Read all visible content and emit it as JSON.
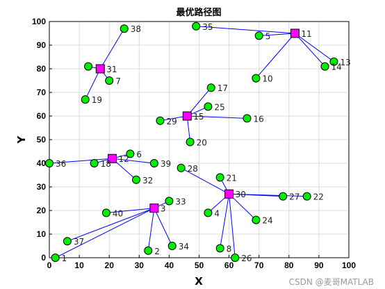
{
  "chart_data": {
    "type": "scatter",
    "title": "最优路径图",
    "xlabel": "X",
    "ylabel": "Y",
    "xlim": [
      0,
      100
    ],
    "ylim": [
      0,
      100
    ],
    "x_ticks": [
      0,
      10,
      20,
      30,
      40,
      50,
      60,
      70,
      80,
      90,
      100
    ],
    "y_ticks": [
      0,
      10,
      20,
      30,
      40,
      50,
      60,
      70,
      80,
      90,
      100
    ],
    "grid": true,
    "colors": {
      "customer_fill": "#00ee00",
      "center_fill": "#ff00ff",
      "route_line": "#0000ff",
      "marker_edge": "#000000"
    },
    "points": [
      {
        "id": 1,
        "x": 2,
        "y": 0,
        "label": "1"
      },
      {
        "id": 2,
        "x": 33,
        "y": 3,
        "label": "2"
      },
      {
        "id": 3,
        "x": 35,
        "y": 21,
        "label": "3"
      },
      {
        "id": 4,
        "x": 53,
        "y": 19,
        "label": "4"
      },
      {
        "id": 5,
        "x": 70,
        "y": 94,
        "label": "5"
      },
      {
        "id": 6,
        "x": 27,
        "y": 44,
        "label": "6"
      },
      {
        "id": 7,
        "x": 20,
        "y": 75,
        "label": "7"
      },
      {
        "id": 8,
        "x": 57,
        "y": 4,
        "label": "8"
      },
      {
        "id": 10,
        "x": 69,
        "y": 76,
        "label": "10"
      },
      {
        "id": 11,
        "x": 82,
        "y": 95,
        "label": "11"
      },
      {
        "id": 12,
        "x": 21,
        "y": 42,
        "label": "12"
      },
      {
        "id": 13,
        "x": 95,
        "y": 83,
        "label": "13"
      },
      {
        "id": 14,
        "x": 92,
        "y": 81,
        "label": "14"
      },
      {
        "id": 15,
        "x": 46,
        "y": 60,
        "label": "15"
      },
      {
        "id": 16,
        "x": 66,
        "y": 59,
        "label": "16"
      },
      {
        "id": 17,
        "x": 54,
        "y": 72,
        "label": "17"
      },
      {
        "id": 18,
        "x": 15,
        "y": 40,
        "label": "18"
      },
      {
        "id": 19,
        "x": 12,
        "y": 67,
        "label": "19"
      },
      {
        "id": 20,
        "x": 47,
        "y": 49,
        "label": "20"
      },
      {
        "id": 21,
        "x": 57,
        "y": 34,
        "label": "21"
      },
      {
        "id": 22,
        "x": 86,
        "y": 26,
        "label": "22"
      },
      {
        "id": 24,
        "x": 69,
        "y": 16,
        "label": "24"
      },
      {
        "id": 25,
        "x": 53,
        "y": 64,
        "label": "25"
      },
      {
        "id": 26,
        "x": 62,
        "y": 0,
        "label": "26"
      },
      {
        "id": 27,
        "x": 78,
        "y": 26,
        "label": "27"
      },
      {
        "id": 28,
        "x": 44,
        "y": 38,
        "label": "28"
      },
      {
        "id": 29,
        "x": 37,
        "y": 58,
        "label": "29"
      },
      {
        "id": 30,
        "x": 60,
        "y": 27,
        "label": "30"
      },
      {
        "id": 31,
        "x": 17,
        "y": 80,
        "label": "31"
      },
      {
        "id": 32,
        "x": 29,
        "y": 33,
        "label": "32"
      },
      {
        "id": 33,
        "x": 40,
        "y": 24,
        "label": "33"
      },
      {
        "id": 34,
        "x": 41,
        "y": 5,
        "label": "34"
      },
      {
        "id": 35,
        "x": 49,
        "y": 98,
        "label": "35"
      },
      {
        "id": 36,
        "x": 0,
        "y": 40,
        "label": "36"
      },
      {
        "id": 37,
        "x": 6,
        "y": 7,
        "label": "37"
      },
      {
        "id": 38,
        "x": 25,
        "y": 97,
        "label": "38"
      },
      {
        "id": 39,
        "x": 35,
        "y": 40,
        "label": "39"
      },
      {
        "id": 40,
        "x": 19,
        "y": 19,
        "label": "40"
      },
      {
        "id": 41,
        "x": 13,
        "y": 81,
        "label": ""
      }
    ],
    "centers": [
      3,
      11,
      12,
      15,
      30,
      31
    ],
    "routes": [
      {
        "center": 31,
        "members": [
          38,
          7,
          19,
          41
        ]
      },
      {
        "center": 11,
        "members": [
          35,
          5,
          10,
          13,
          14
        ]
      },
      {
        "center": 15,
        "members": [
          17,
          25,
          16,
          29,
          20
        ]
      },
      {
        "center": 12,
        "members": [
          6,
          18,
          36,
          39,
          32
        ]
      },
      {
        "center": 30,
        "members": [
          28,
          21,
          4,
          27,
          22,
          24,
          8,
          26
        ]
      },
      {
        "center": 3,
        "members": [
          33,
          40,
          37,
          1,
          2,
          34
        ]
      }
    ]
  },
  "watermark": "CSDN @麦哥MATLAB"
}
